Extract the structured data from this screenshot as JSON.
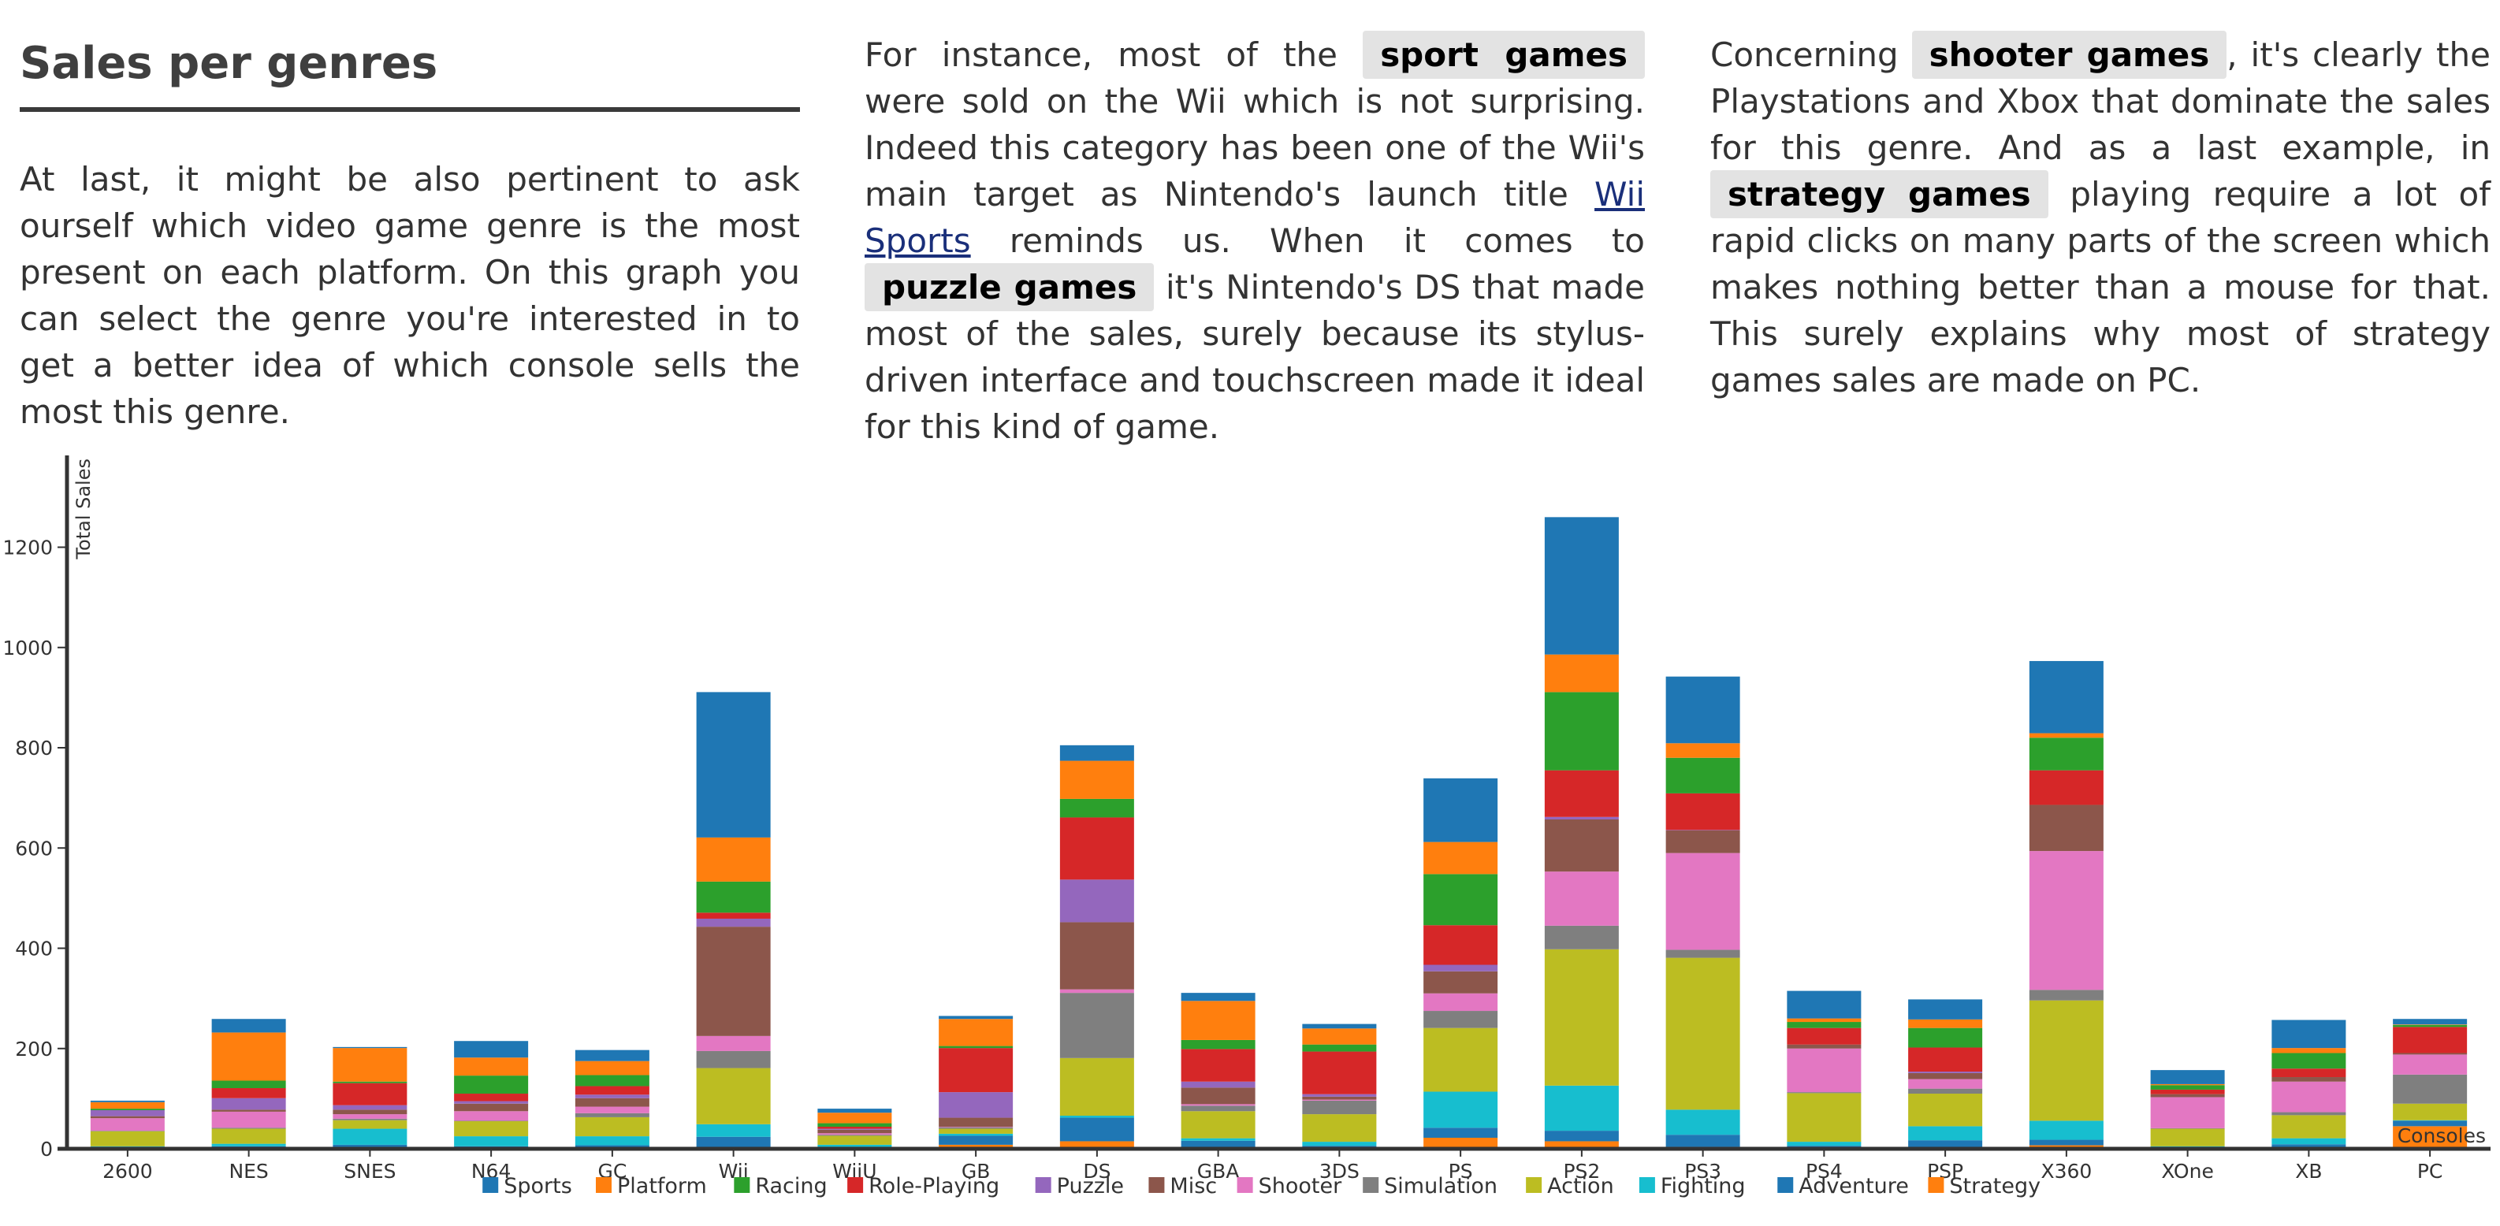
{
  "left": {
    "title": "Sales per genres",
    "paragraph": "At last, it might be also pertinent to ask ourself which video game genre is the most present on each platform. On this graph you can select the genre you're interested in to get a better idea of which console sells the most this genre."
  },
  "middle": {
    "t1": "For instance, most of the",
    "hl1": "sport games",
    "t2": "were sold on the Wii which is not surprising. Indeed this category has been one of the Wii's main target as Nintendo's launch title",
    "link": "Wii Sports",
    "t3": "reminds us. When it comes to",
    "hl2": "puzzle games",
    "t4": "it's Nintendo's DS that made most of the sales, surely because its stylus-driven interface and touchscreen made it ideal for this kind of game."
  },
  "right": {
    "t1": "Concerning",
    "hl1": "shooter games",
    "t2": ", it's clearly the Playstations and Xbox that dominate the sales for this genre. And as a last example, in",
    "hl2": "strategy games",
    "t3": "playing require a lot of rapid clicks on many parts of the screen which makes nothing better than a mouse for that. This surely explains why most of strategy games sales are made on PC."
  },
  "chart_data": {
    "type": "bar",
    "stacked": true,
    "ylabel": "Total Sales",
    "xlabel": "Consoles",
    "ylim": [
      0,
      1380
    ],
    "yticks": [
      0,
      200,
      400,
      600,
      800,
      1000,
      1200
    ],
    "legend_position": "bottom",
    "categories": [
      "2600",
      "NES",
      "SNES",
      "N64",
      "GC",
      "Wii",
      "WiiU",
      "GB",
      "DS",
      "GBA",
      "3DS",
      "PS",
      "PS2",
      "PS3",
      "PS4",
      "PSP",
      "X360",
      "XOne",
      "XB",
      "PC"
    ],
    "series": [
      {
        "name": "Strategy",
        "color": "#ff7f0e",
        "values": [
          0,
          0,
          3,
          1,
          1,
          2,
          0,
          8,
          15,
          1,
          1,
          22,
          15,
          4,
          0,
          3,
          7,
          0,
          1,
          45
        ]
      },
      {
        "name": "Adventure",
        "color": "#1f77b4",
        "values": [
          4,
          5,
          5,
          4,
          6,
          22,
          2,
          18,
          47,
          15,
          5,
          20,
          21,
          24,
          6,
          14,
          11,
          3,
          8,
          11
        ]
      },
      {
        "name": "Fighting",
        "color": "#17becf",
        "values": [
          1,
          5,
          32,
          20,
          18,
          25,
          6,
          4,
          4,
          5,
          8,
          72,
          90,
          50,
          8,
          28,
          38,
          2,
          12,
          1
        ]
      },
      {
        "name": "Action",
        "color": "#bcbd22",
        "values": [
          30,
          30,
          17,
          30,
          38,
          112,
          18,
          10,
          115,
          54,
          55,
          127,
          272,
          303,
          97,
          65,
          240,
          35,
          46,
          33
        ]
      },
      {
        "name": "Simulation",
        "color": "#7f7f7f",
        "values": [
          1,
          2,
          3,
          1,
          8,
          34,
          2,
          3,
          130,
          11,
          27,
          34,
          47,
          16,
          2,
          10,
          21,
          1,
          6,
          58
        ]
      },
      {
        "name": "Shooter",
        "color": "#e377c2",
        "values": [
          25,
          32,
          9,
          19,
          13,
          30,
          3,
          1,
          7,
          3,
          2,
          35,
          108,
          193,
          87,
          19,
          277,
          62,
          61,
          40
        ]
      },
      {
        "name": "Misc",
        "color": "#8c564b",
        "values": [
          4,
          4,
          9,
          15,
          17,
          218,
          7,
          18,
          134,
          33,
          6,
          44,
          104,
          45,
          8,
          12,
          92,
          6,
          9,
          3
        ]
      },
      {
        "name": "Puzzle",
        "color": "#9467bd",
        "values": [
          12,
          23,
          9,
          5,
          7,
          16,
          2,
          51,
          85,
          12,
          5,
          13,
          5,
          1,
          0,
          3,
          0,
          0,
          0,
          0
        ]
      },
      {
        "name": "Role-Playing",
        "color": "#d62728",
        "values": [
          0,
          20,
          44,
          15,
          17,
          12,
          4,
          88,
          124,
          65,
          85,
          79,
          93,
          73,
          33,
          48,
          69,
          9,
          17,
          52
        ]
      },
      {
        "name": "Racing",
        "color": "#2ca02c",
        "values": [
          3,
          15,
          3,
          36,
          22,
          62,
          7,
          4,
          37,
          18,
          14,
          102,
          156,
          71,
          12,
          39,
          65,
          9,
          31,
          4
        ]
      },
      {
        "name": "Platform",
        "color": "#ff7f0e",
        "values": [
          13,
          96,
          67,
          36,
          28,
          88,
          21,
          54,
          76,
          78,
          32,
          64,
          75,
          29,
          7,
          17,
          9,
          2,
          10,
          1
        ]
      },
      {
        "name": "Sports",
        "color": "#1f77b4",
        "values": [
          3,
          27,
          2,
          33,
          22,
          290,
          8,
          6,
          31,
          16,
          9,
          127,
          274,
          133,
          55,
          40,
          144,
          28,
          56,
          11
        ]
      }
    ],
    "legend_order": [
      "Sports",
      "Platform",
      "Racing",
      "Role-Playing",
      "Puzzle",
      "Misc",
      "Shooter",
      "Simulation",
      "Action",
      "Fighting",
      "Adventure",
      "Strategy"
    ]
  }
}
